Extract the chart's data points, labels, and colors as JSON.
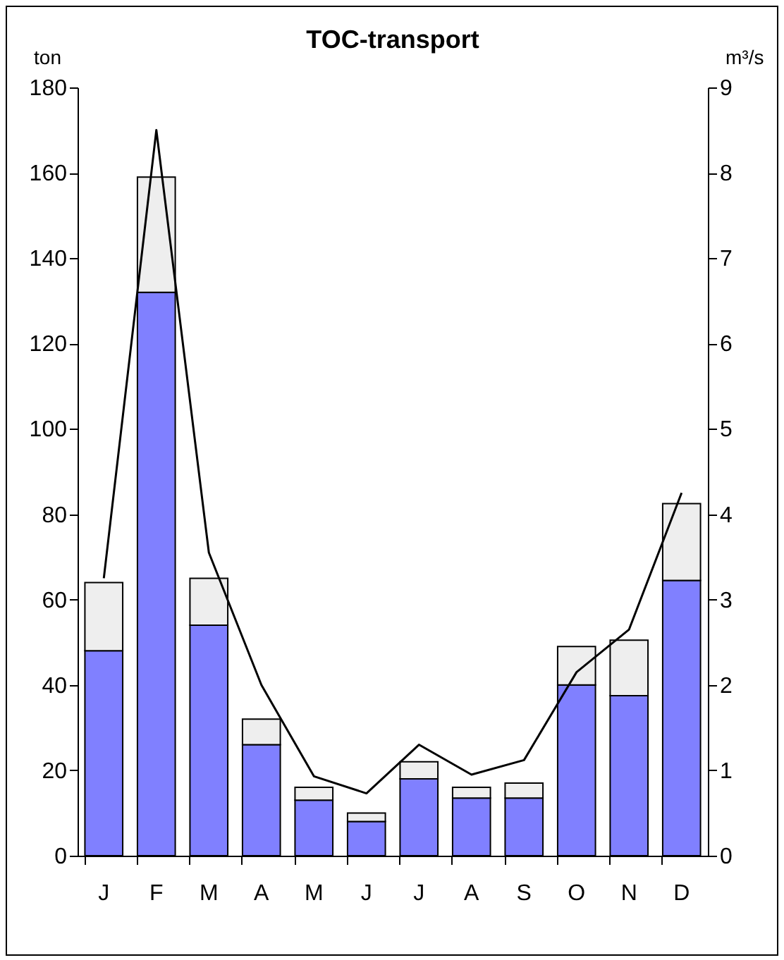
{
  "chart_data": {
    "type": "bar",
    "title": "TOC-transport",
    "ylabel": "ton",
    "y2label": "m³/s",
    "categories": [
      "J",
      "F",
      "M",
      "A",
      "M",
      "J",
      "J",
      "A",
      "S",
      "O",
      "N",
      "D"
    ],
    "stacked": true,
    "series": [
      {
        "color": "#8080ff",
        "values": [
          48,
          132,
          54,
          26,
          13,
          8,
          18,
          13.5,
          13.5,
          40,
          37.5,
          64.5
        ]
      },
      {
        "color": "#eeeeee",
        "values": [
          16,
          27,
          11,
          6,
          3,
          2,
          4,
          2.5,
          3.5,
          9,
          13,
          18
        ]
      },
      {
        "type": "line",
        "axis": "y2",
        "color": "#000000",
        "values": [
          3.25,
          8.5,
          3.55,
          2.0,
          0.93,
          0.73,
          1.3,
          0.95,
          1.12,
          2.15,
          2.65,
          4.25
        ]
      }
    ],
    "ylim": [
      0,
      180
    ],
    "yticks": [
      0,
      20,
      40,
      60,
      80,
      100,
      120,
      140,
      160,
      180
    ],
    "y2lim": [
      0,
      9
    ],
    "y2ticks": [
      0,
      1,
      2,
      3,
      4,
      5,
      6,
      7,
      8,
      9
    ]
  }
}
